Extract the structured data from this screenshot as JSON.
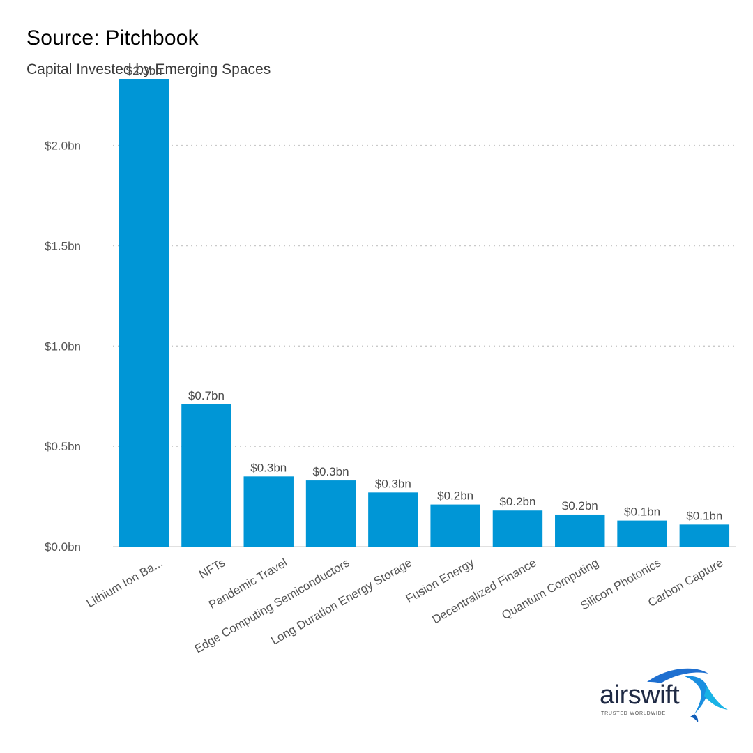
{
  "header": {
    "source": "Source: Pitchbook",
    "subtitle": "Capital Invested by Emerging Spaces"
  },
  "logo": {
    "name": "airswift",
    "tagline": "TRUSTED WORLDWIDE"
  },
  "colors": {
    "bar": "#0096d6",
    "grid": "#c9c9c9",
    "axis": "#d5d5d5"
  },
  "chart_data": {
    "type": "bar",
    "title": "Capital Invested by Emerging Spaces",
    "xlabel": "",
    "ylabel": "",
    "ylim": [
      0,
      2.35
    ],
    "yticks": [
      0.0,
      0.5,
      1.0,
      1.5,
      2.0
    ],
    "ytick_labels": [
      "$0.0bn",
      "$0.5bn",
      "$1.0bn",
      "$1.5bn",
      "$2.0bn"
    ],
    "grid": true,
    "categories": [
      "Lithium Ion Ba...",
      "NFTs",
      "Pandemic Travel",
      "Edge Computing Semiconductors",
      "Long Duration Energy Storage",
      "Fusion Energy",
      "Decentralized Finance",
      "Quantum Computing",
      "Silicon Photonics",
      "Carbon Capture"
    ],
    "values": [
      2.33,
      0.71,
      0.35,
      0.33,
      0.27,
      0.21,
      0.18,
      0.16,
      0.13,
      0.11
    ],
    "data_labels": [
      "$2.3bn",
      "$0.7bn",
      "$0.3bn",
      "$0.3bn",
      "$0.3bn",
      "$0.2bn",
      "$0.2bn",
      "$0.2bn",
      "$0.1bn",
      "$0.1bn"
    ]
  }
}
